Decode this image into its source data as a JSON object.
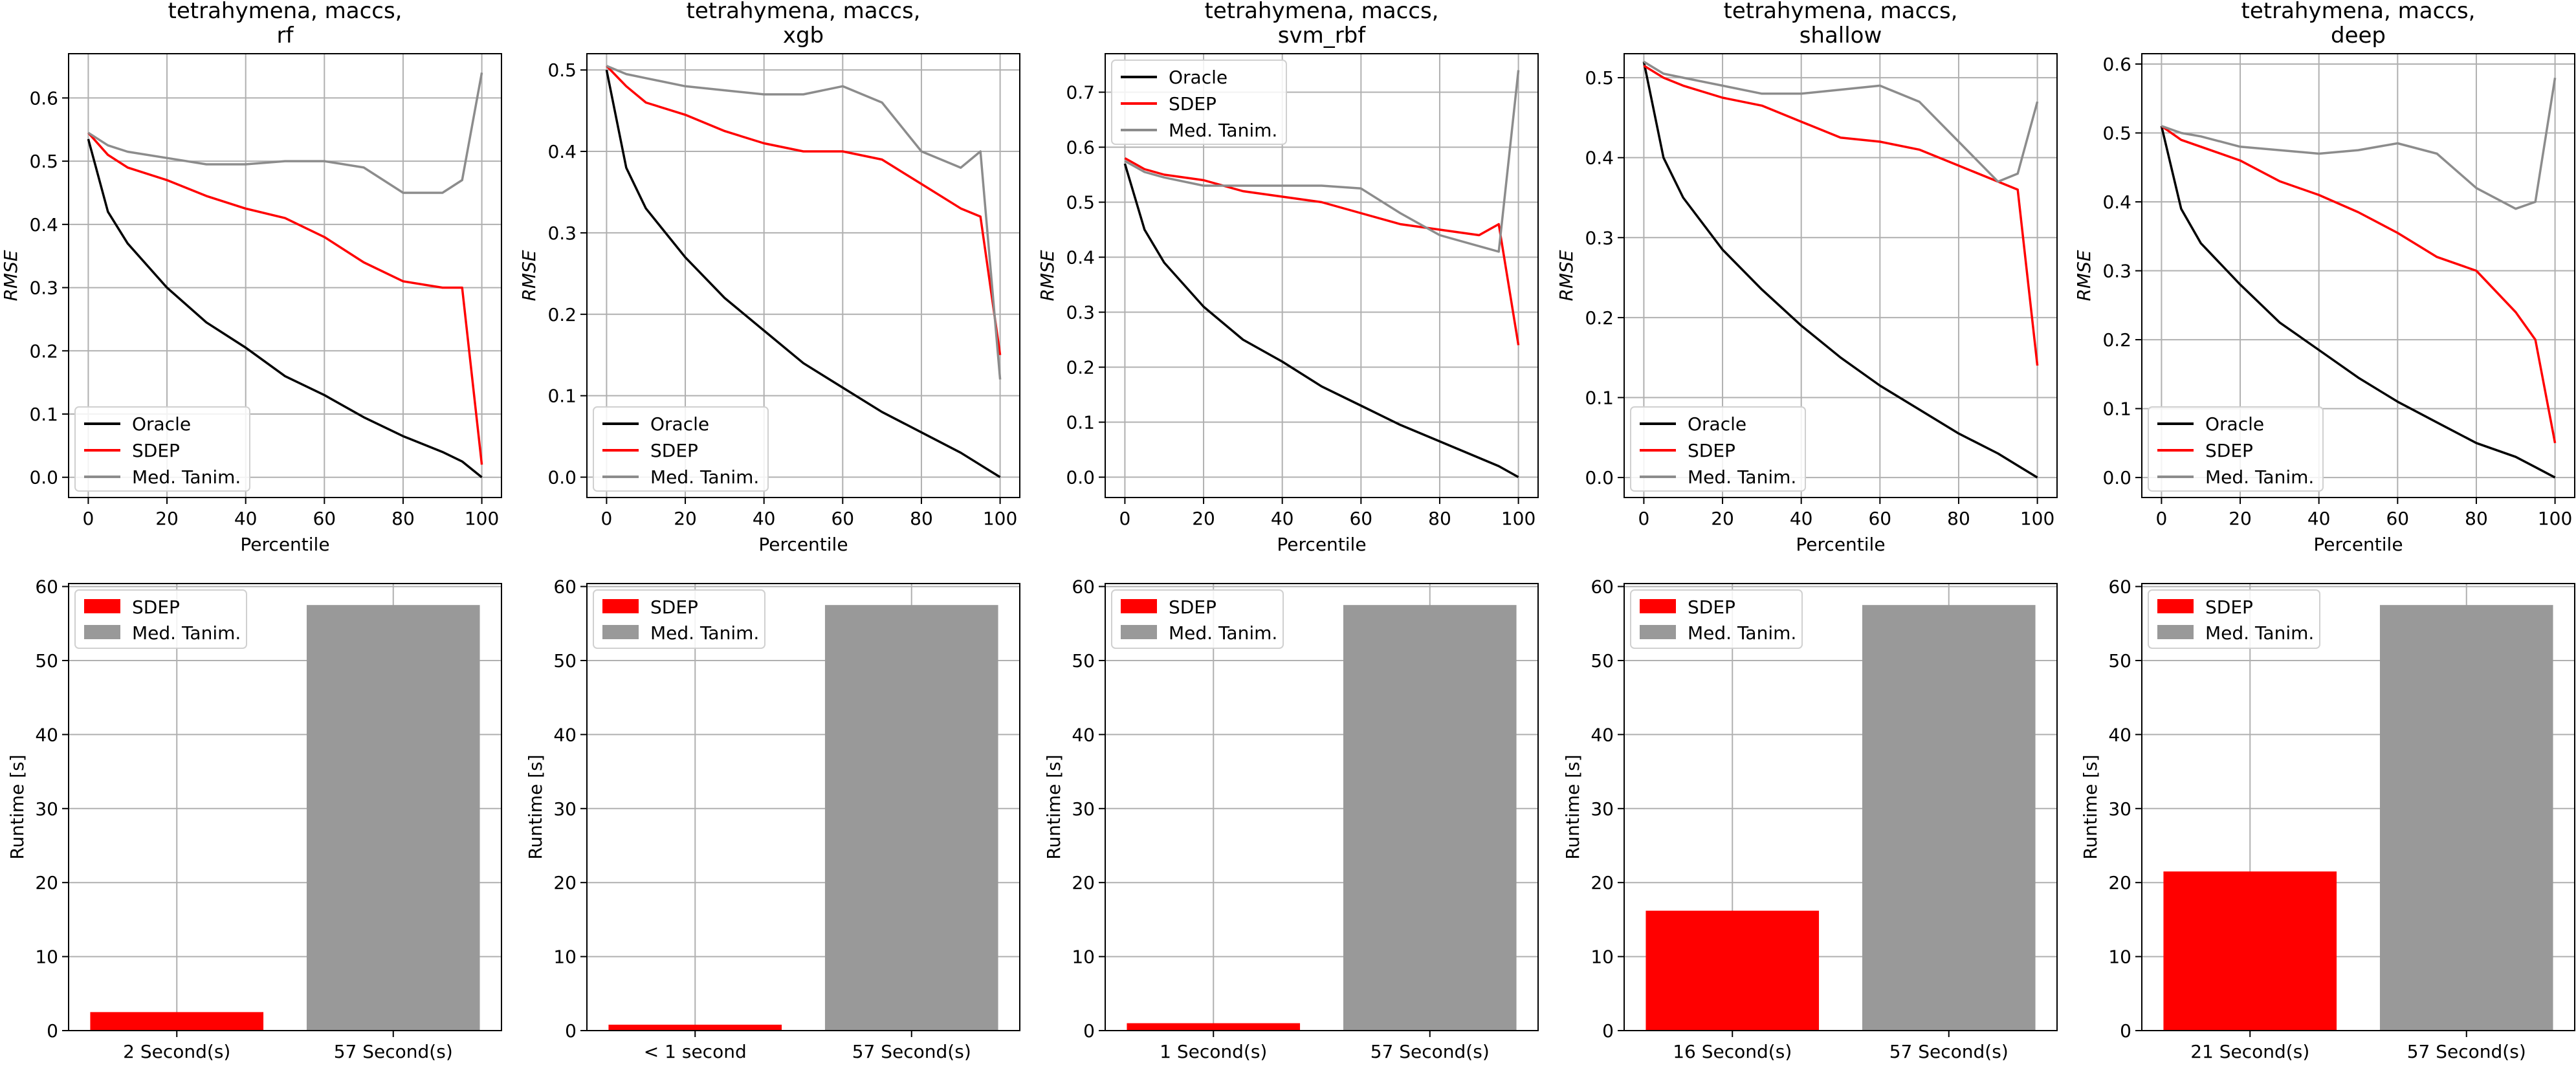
{
  "figure": {
    "line_legend": [
      "Oracle",
      "SDEP",
      "Med. Tanim."
    ],
    "bar_legend": [
      "SDEP",
      "Med. Tanim."
    ],
    "colors": {
      "oracle": "#000000",
      "sdep": "#ff0000",
      "tanim": "#999999",
      "tanim_line": "#8c8c8c",
      "grid": "#b0b0b0"
    }
  },
  "chart_data": [
    {
      "type": "line",
      "title_line1": "tetrahymena, maccs,",
      "title_line2": "rf",
      "xlabel": "Percentile",
      "ylabel": "RMSE",
      "xlim": [
        -5,
        105
      ],
      "ylim": [
        -0.032,
        0.67
      ],
      "yticks": [
        0.0,
        0.1,
        0.2,
        0.3,
        0.4,
        0.5,
        0.6
      ],
      "xticks": [
        0,
        20,
        40,
        60,
        80,
        100
      ],
      "legend_position": "lower left",
      "x": [
        0,
        5,
        10,
        20,
        30,
        40,
        50,
        60,
        70,
        80,
        90,
        95,
        100
      ],
      "series": [
        {
          "name": "Oracle",
          "values": [
            0.535,
            0.42,
            0.37,
            0.3,
            0.245,
            0.205,
            0.16,
            0.13,
            0.095,
            0.065,
            0.04,
            0.025,
            0.0
          ]
        },
        {
          "name": "SDEP",
          "values": [
            0.545,
            0.51,
            0.49,
            0.47,
            0.445,
            0.425,
            0.41,
            0.38,
            0.34,
            0.31,
            0.3,
            0.3,
            0.02
          ]
        },
        {
          "name": "Med. Tanim.",
          "values": [
            0.545,
            0.525,
            0.515,
            0.505,
            0.495,
            0.495,
            0.5,
            0.5,
            0.49,
            0.45,
            0.45,
            0.47,
            0.64
          ]
        }
      ]
    },
    {
      "type": "line",
      "title_line1": "tetrahymena, maccs,",
      "title_line2": "xgb",
      "xlabel": "Percentile",
      "ylabel": "RMSE",
      "xlim": [
        -5,
        105
      ],
      "ylim": [
        -0.025,
        0.52
      ],
      "yticks": [
        0.0,
        0.1,
        0.2,
        0.3,
        0.4,
        0.5
      ],
      "xticks": [
        0,
        20,
        40,
        60,
        80,
        100
      ],
      "legend_position": "lower left",
      "x": [
        0,
        5,
        10,
        20,
        30,
        40,
        50,
        60,
        70,
        80,
        90,
        95,
        100
      ],
      "series": [
        {
          "name": "Oracle",
          "values": [
            0.5,
            0.38,
            0.33,
            0.27,
            0.22,
            0.18,
            0.14,
            0.11,
            0.08,
            0.055,
            0.03,
            0.015,
            0.0
          ]
        },
        {
          "name": "SDEP",
          "values": [
            0.505,
            0.48,
            0.46,
            0.445,
            0.425,
            0.41,
            0.4,
            0.4,
            0.39,
            0.36,
            0.33,
            0.32,
            0.15
          ]
        },
        {
          "name": "Med. Tanim.",
          "values": [
            0.505,
            0.495,
            0.49,
            0.48,
            0.475,
            0.47,
            0.47,
            0.48,
            0.46,
            0.4,
            0.38,
            0.4,
            0.12
          ]
        }
      ]
    },
    {
      "type": "line",
      "title_line1": "tetrahymena, maccs,",
      "title_line2": "svm_rbf",
      "xlabel": "Percentile",
      "ylabel": "RMSE",
      "xlim": [
        -5,
        105
      ],
      "ylim": [
        -0.037,
        0.77
      ],
      "yticks": [
        0.0,
        0.1,
        0.2,
        0.3,
        0.4,
        0.5,
        0.6,
        0.7
      ],
      "xticks": [
        0,
        20,
        40,
        60,
        80,
        100
      ],
      "legend_position": "upper left",
      "x": [
        0,
        5,
        10,
        20,
        30,
        40,
        50,
        60,
        70,
        80,
        90,
        95,
        100
      ],
      "series": [
        {
          "name": "Oracle",
          "values": [
            0.57,
            0.45,
            0.39,
            0.31,
            0.25,
            0.21,
            0.165,
            0.13,
            0.095,
            0.065,
            0.035,
            0.02,
            0.0
          ]
        },
        {
          "name": "SDEP",
          "values": [
            0.58,
            0.56,
            0.55,
            0.54,
            0.52,
            0.51,
            0.5,
            0.48,
            0.46,
            0.45,
            0.44,
            0.46,
            0.24
          ]
        },
        {
          "name": "Med. Tanim.",
          "values": [
            0.575,
            0.555,
            0.545,
            0.53,
            0.53,
            0.53,
            0.53,
            0.525,
            0.48,
            0.44,
            0.42,
            0.41,
            0.74
          ]
        }
      ]
    },
    {
      "type": "line",
      "title_line1": "tetrahymena, maccs,",
      "title_line2": "shallow",
      "xlabel": "Percentile",
      "ylabel": "RMSE",
      "xlim": [
        -5,
        105
      ],
      "ylim": [
        -0.025,
        0.53
      ],
      "yticks": [
        0.0,
        0.1,
        0.2,
        0.3,
        0.4,
        0.5
      ],
      "xticks": [
        0,
        20,
        40,
        60,
        80,
        100
      ],
      "legend_position": "lower left",
      "x": [
        0,
        5,
        10,
        20,
        30,
        40,
        50,
        60,
        70,
        80,
        90,
        95,
        100
      ],
      "series": [
        {
          "name": "Oracle",
          "values": [
            0.52,
            0.4,
            0.35,
            0.285,
            0.235,
            0.19,
            0.15,
            0.115,
            0.085,
            0.055,
            0.03,
            0.015,
            0.0
          ]
        },
        {
          "name": "SDEP",
          "values": [
            0.515,
            0.5,
            0.49,
            0.475,
            0.465,
            0.445,
            0.425,
            0.42,
            0.41,
            0.39,
            0.37,
            0.36,
            0.14
          ]
        },
        {
          "name": "Med. Tanim.",
          "values": [
            0.52,
            0.505,
            0.5,
            0.49,
            0.48,
            0.48,
            0.485,
            0.49,
            0.47,
            0.42,
            0.37,
            0.38,
            0.47
          ]
        }
      ]
    },
    {
      "type": "line",
      "title_line1": "tetrahymena, maccs,",
      "title_line2": "deep",
      "xlabel": "Percentile",
      "ylabel": "RMSE",
      "xlim": [
        -5,
        105
      ],
      "ylim": [
        -0.029,
        0.615
      ],
      "yticks": [
        0.0,
        0.1,
        0.2,
        0.3,
        0.4,
        0.5,
        0.6
      ],
      "xticks": [
        0,
        20,
        40,
        60,
        80,
        100
      ],
      "legend_position": "lower left",
      "x": [
        0,
        5,
        10,
        20,
        30,
        40,
        50,
        60,
        70,
        80,
        90,
        95,
        100
      ],
      "series": [
        {
          "name": "Oracle",
          "values": [
            0.51,
            0.39,
            0.34,
            0.28,
            0.225,
            0.185,
            0.145,
            0.11,
            0.08,
            0.05,
            0.03,
            0.015,
            0.0
          ]
        },
        {
          "name": "SDEP",
          "values": [
            0.51,
            0.49,
            0.48,
            0.46,
            0.43,
            0.41,
            0.385,
            0.355,
            0.32,
            0.3,
            0.24,
            0.2,
            0.05
          ]
        },
        {
          "name": "Med. Tanim.",
          "values": [
            0.51,
            0.5,
            0.495,
            0.48,
            0.475,
            0.47,
            0.475,
            0.485,
            0.47,
            0.42,
            0.39,
            0.4,
            0.58
          ]
        }
      ]
    },
    {
      "type": "bar",
      "ylabel": "Runtime [s]",
      "categories": [
        "2 Second(s)",
        "57 Second(s)"
      ],
      "series": [
        {
          "name": "SDEP",
          "values": [
            2.5,
            0
          ]
        },
        {
          "name": "Med. Tanim.",
          "values": [
            0,
            57.5
          ]
        }
      ],
      "values": [
        2.5,
        57.5
      ],
      "ylim": [
        0,
        60.4
      ],
      "yticks": [
        0,
        10,
        20,
        30,
        40,
        50,
        60
      ],
      "legend_position": "upper left"
    },
    {
      "type": "bar",
      "ylabel": "Runtime [s]",
      "categories": [
        "< 1 second",
        "57 Second(s)"
      ],
      "series": [
        {
          "name": "SDEP",
          "values": [
            0.8,
            0
          ]
        },
        {
          "name": "Med. Tanim.",
          "values": [
            0,
            57.5
          ]
        }
      ],
      "values": [
        0.8,
        57.5
      ],
      "ylim": [
        0,
        60.4
      ],
      "yticks": [
        0,
        10,
        20,
        30,
        40,
        50,
        60
      ],
      "legend_position": "upper left"
    },
    {
      "type": "bar",
      "ylabel": "Runtime [s]",
      "categories": [
        "1 Second(s)",
        "57 Second(s)"
      ],
      "series": [
        {
          "name": "SDEP",
          "values": [
            1.0,
            0
          ]
        },
        {
          "name": "Med. Tanim.",
          "values": [
            0,
            57.5
          ]
        }
      ],
      "values": [
        1.0,
        57.5
      ],
      "ylim": [
        0,
        60.4
      ],
      "yticks": [
        0,
        10,
        20,
        30,
        40,
        50,
        60
      ],
      "legend_position": "upper left"
    },
    {
      "type": "bar",
      "ylabel": "Runtime [s]",
      "categories": [
        "16 Second(s)",
        "57 Second(s)"
      ],
      "series": [
        {
          "name": "SDEP",
          "values": [
            16.2,
            0
          ]
        },
        {
          "name": "Med. Tanim.",
          "values": [
            0,
            57.5
          ]
        }
      ],
      "values": [
        16.2,
        57.5
      ],
      "ylim": [
        0,
        60.4
      ],
      "yticks": [
        0,
        10,
        20,
        30,
        40,
        50,
        60
      ],
      "legend_position": "upper left"
    },
    {
      "type": "bar",
      "ylabel": "Runtime [s]",
      "categories": [
        "21 Second(s)",
        "57 Second(s)"
      ],
      "series": [
        {
          "name": "SDEP",
          "values": [
            21.5,
            0
          ]
        },
        {
          "name": "Med. Tanim.",
          "values": [
            0,
            57.5
          ]
        }
      ],
      "values": [
        21.5,
        57.5
      ],
      "ylim": [
        0,
        60.4
      ],
      "yticks": [
        0,
        10,
        20,
        30,
        40,
        50,
        60
      ],
      "legend_position": "upper left"
    }
  ]
}
